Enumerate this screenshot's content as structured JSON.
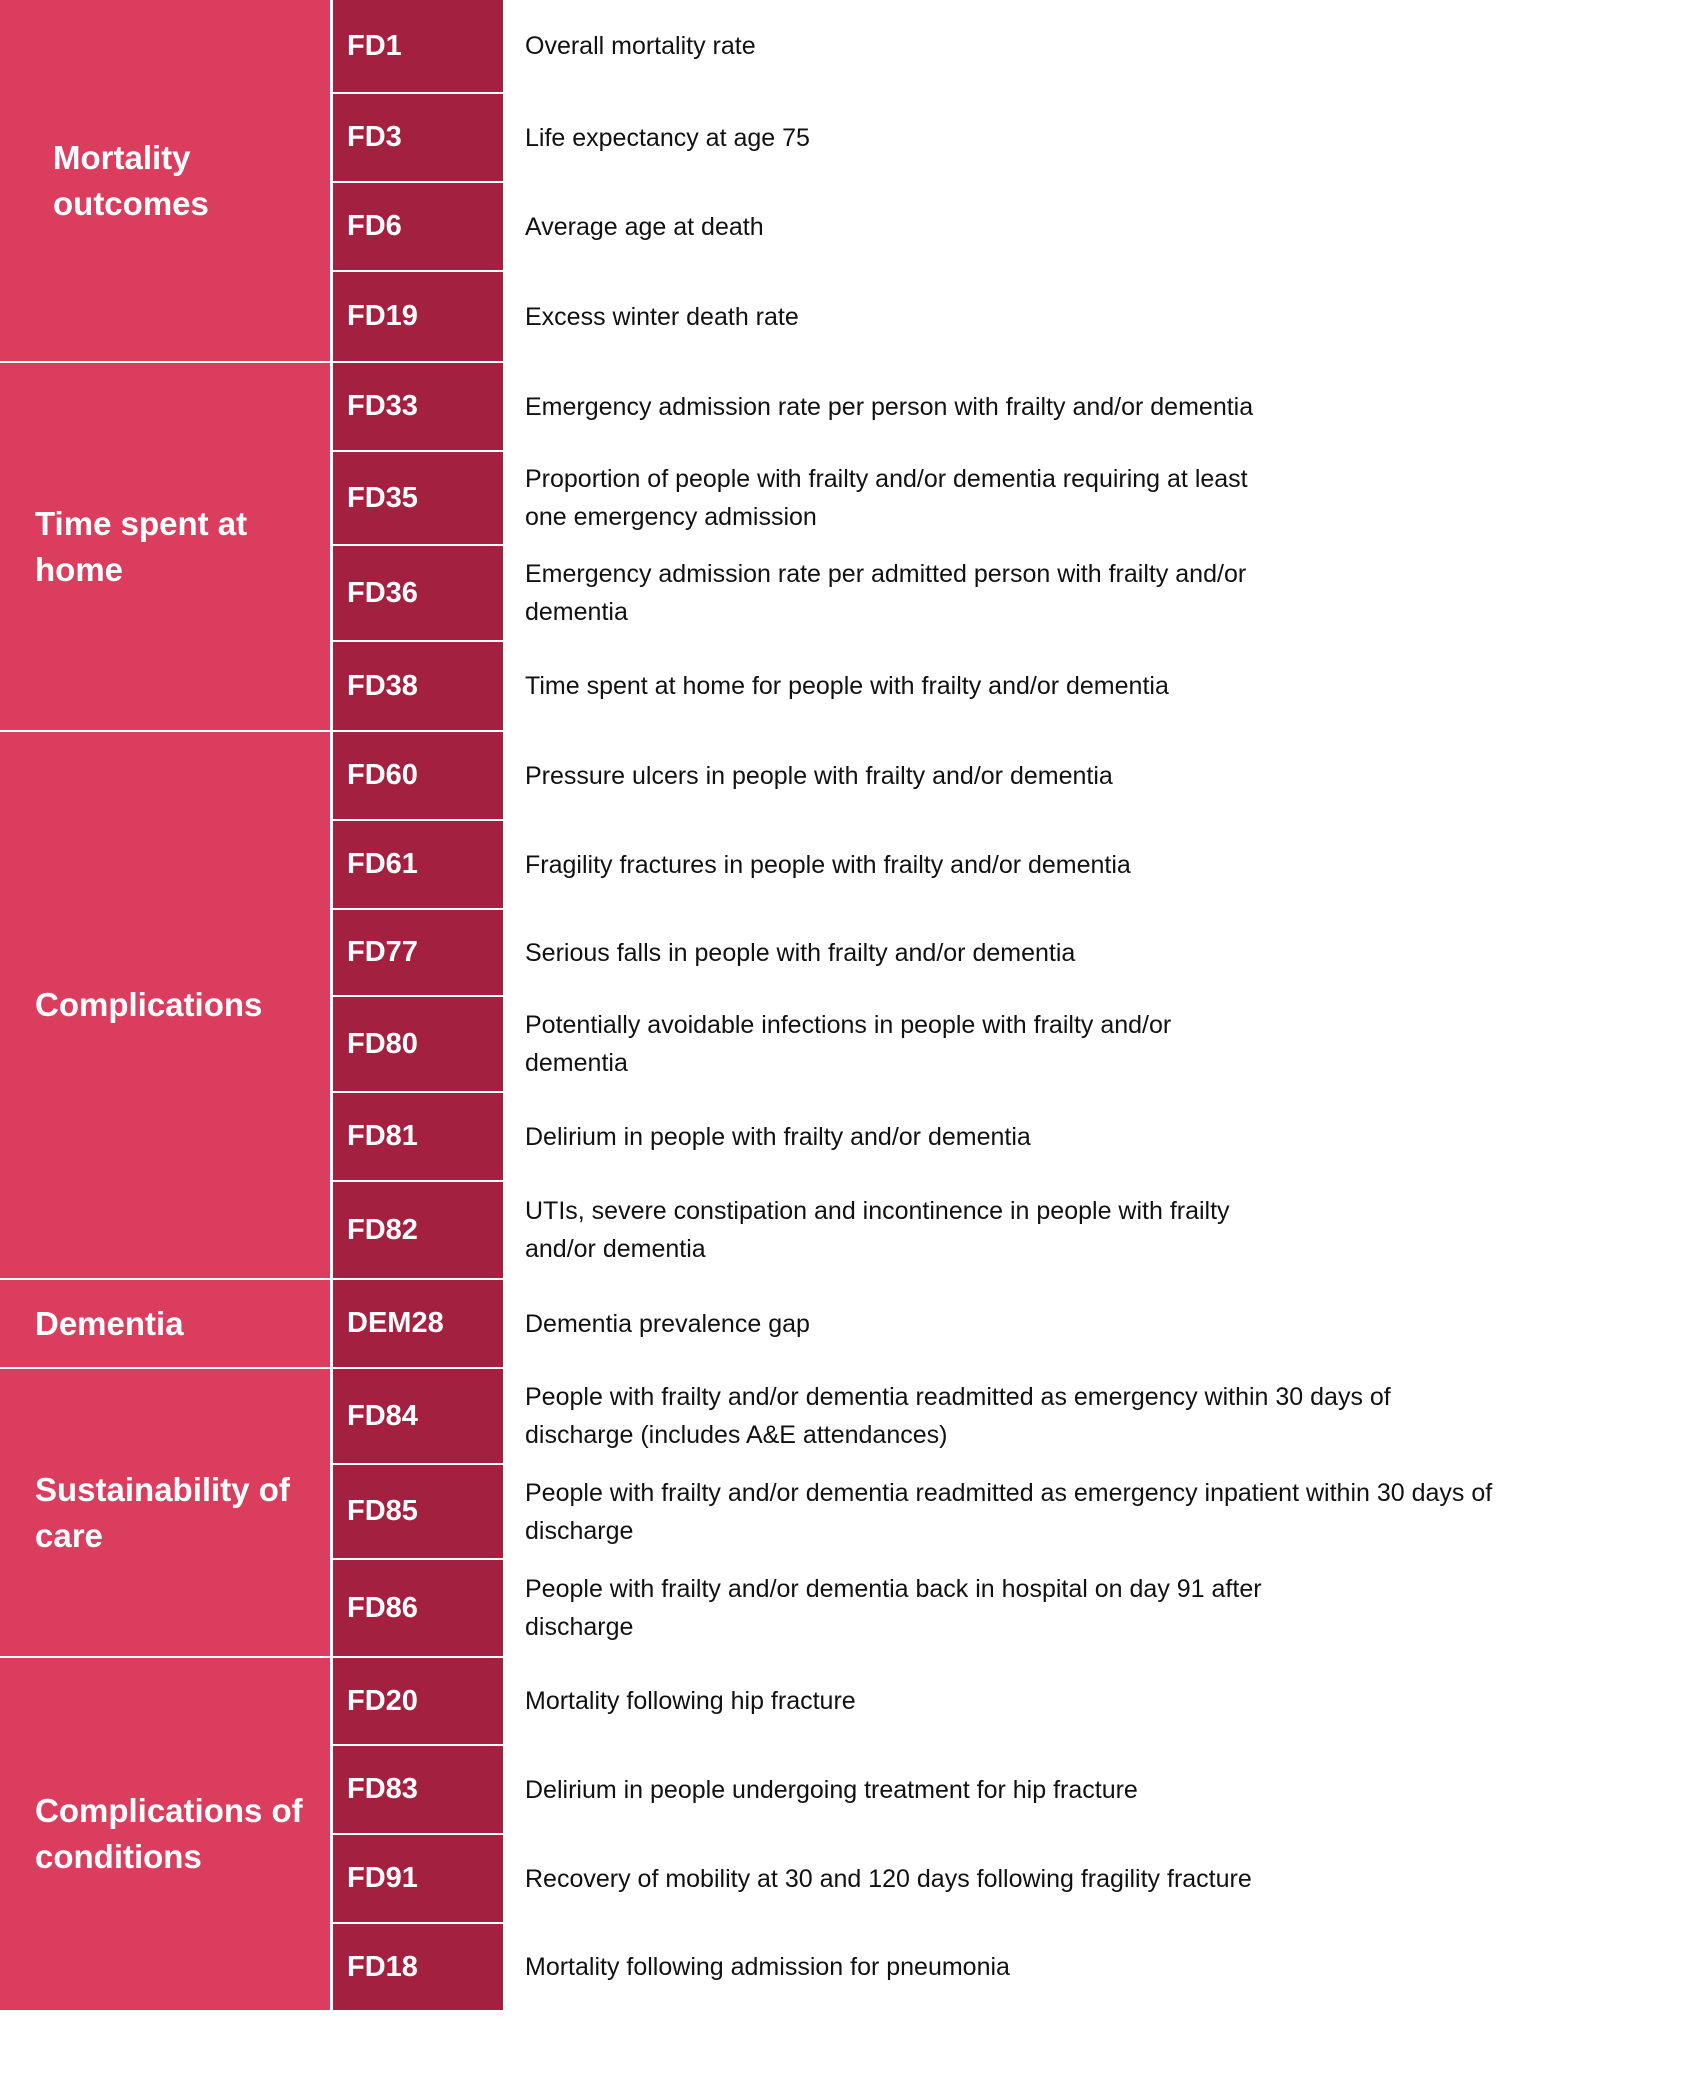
{
  "colors": {
    "category_bg": "#DB3D5E",
    "code_bg": "#A32040",
    "text": "#111111"
  },
  "groups": [
    {
      "label": "Mortality\noutcomes",
      "items": [
        {
          "code": "FD1",
          "text": "Overall mortality rate"
        },
        {
          "code": "FD3",
          "text": "Life expectancy at age 75"
        },
        {
          "code": "FD6",
          "text": "Average age at death"
        },
        {
          "code": "FD19",
          "text": "Excess winter death rate"
        }
      ]
    },
    {
      "label": "Time spent at\nhome",
      "items": [
        {
          "code": "FD33",
          "text": "Emergency admission rate per person with frailty and/or dementia"
        },
        {
          "code": "FD35",
          "text": "Proportion of people with frailty and/or dementia requiring at least\none emergency admission"
        },
        {
          "code": "FD36",
          "text": "Emergency admission rate per admitted person with frailty and/or\ndementia"
        },
        {
          "code": "FD38",
          "text": "Time spent at home for people with frailty and/or dementia"
        }
      ]
    },
    {
      "label": "Complications",
      "items": [
        {
          "code": "FD60",
          "text": "Pressure ulcers in people with frailty and/or dementia"
        },
        {
          "code": "FD61",
          "text": "Fragility fractures in people with frailty and/or dementia"
        },
        {
          "code": "FD77",
          "text": "Serious falls in people with frailty and/or dementia"
        },
        {
          "code": "FD80",
          "text": "Potentially avoidable infections in people with frailty and/or\ndementia"
        },
        {
          "code": "FD81",
          "text": "Delirium in people with frailty and/or dementia"
        },
        {
          "code": "FD82",
          "text": "UTIs, severe constipation and incontinence in people with frailty\nand/or dementia"
        }
      ]
    },
    {
      "label": "Dementia",
      "items": [
        {
          "code": "DEM28",
          "text": "Dementia prevalence gap"
        }
      ]
    },
    {
      "label": "Sustainability of\ncare",
      "items": [
        {
          "code": "FD84",
          "text": "People with frailty and/or dementia readmitted as emergency within 30 days of\ndischarge (includes A&E attendances)"
        },
        {
          "code": "FD85",
          "text": "People with frailty and/or dementia readmitted as emergency inpatient within 30 days of\ndischarge"
        },
        {
          "code": "FD86",
          "text": "People with frailty and/or dementia back in hospital on day 91 after\ndischarge"
        }
      ]
    },
    {
      "label": "Complications of\nconditions",
      "items": [
        {
          "code": "FD20",
          "text": "Mortality following hip fracture"
        },
        {
          "code": "FD83",
          "text": "Delirium in people undergoing treatment for hip fracture"
        },
        {
          "code": "FD91",
          "text": "Recovery of mobility at 30 and 120 days following fragility fracture"
        },
        {
          "code": "FD18",
          "text": "Mortality following admission for pneumonia"
        }
      ]
    }
  ]
}
